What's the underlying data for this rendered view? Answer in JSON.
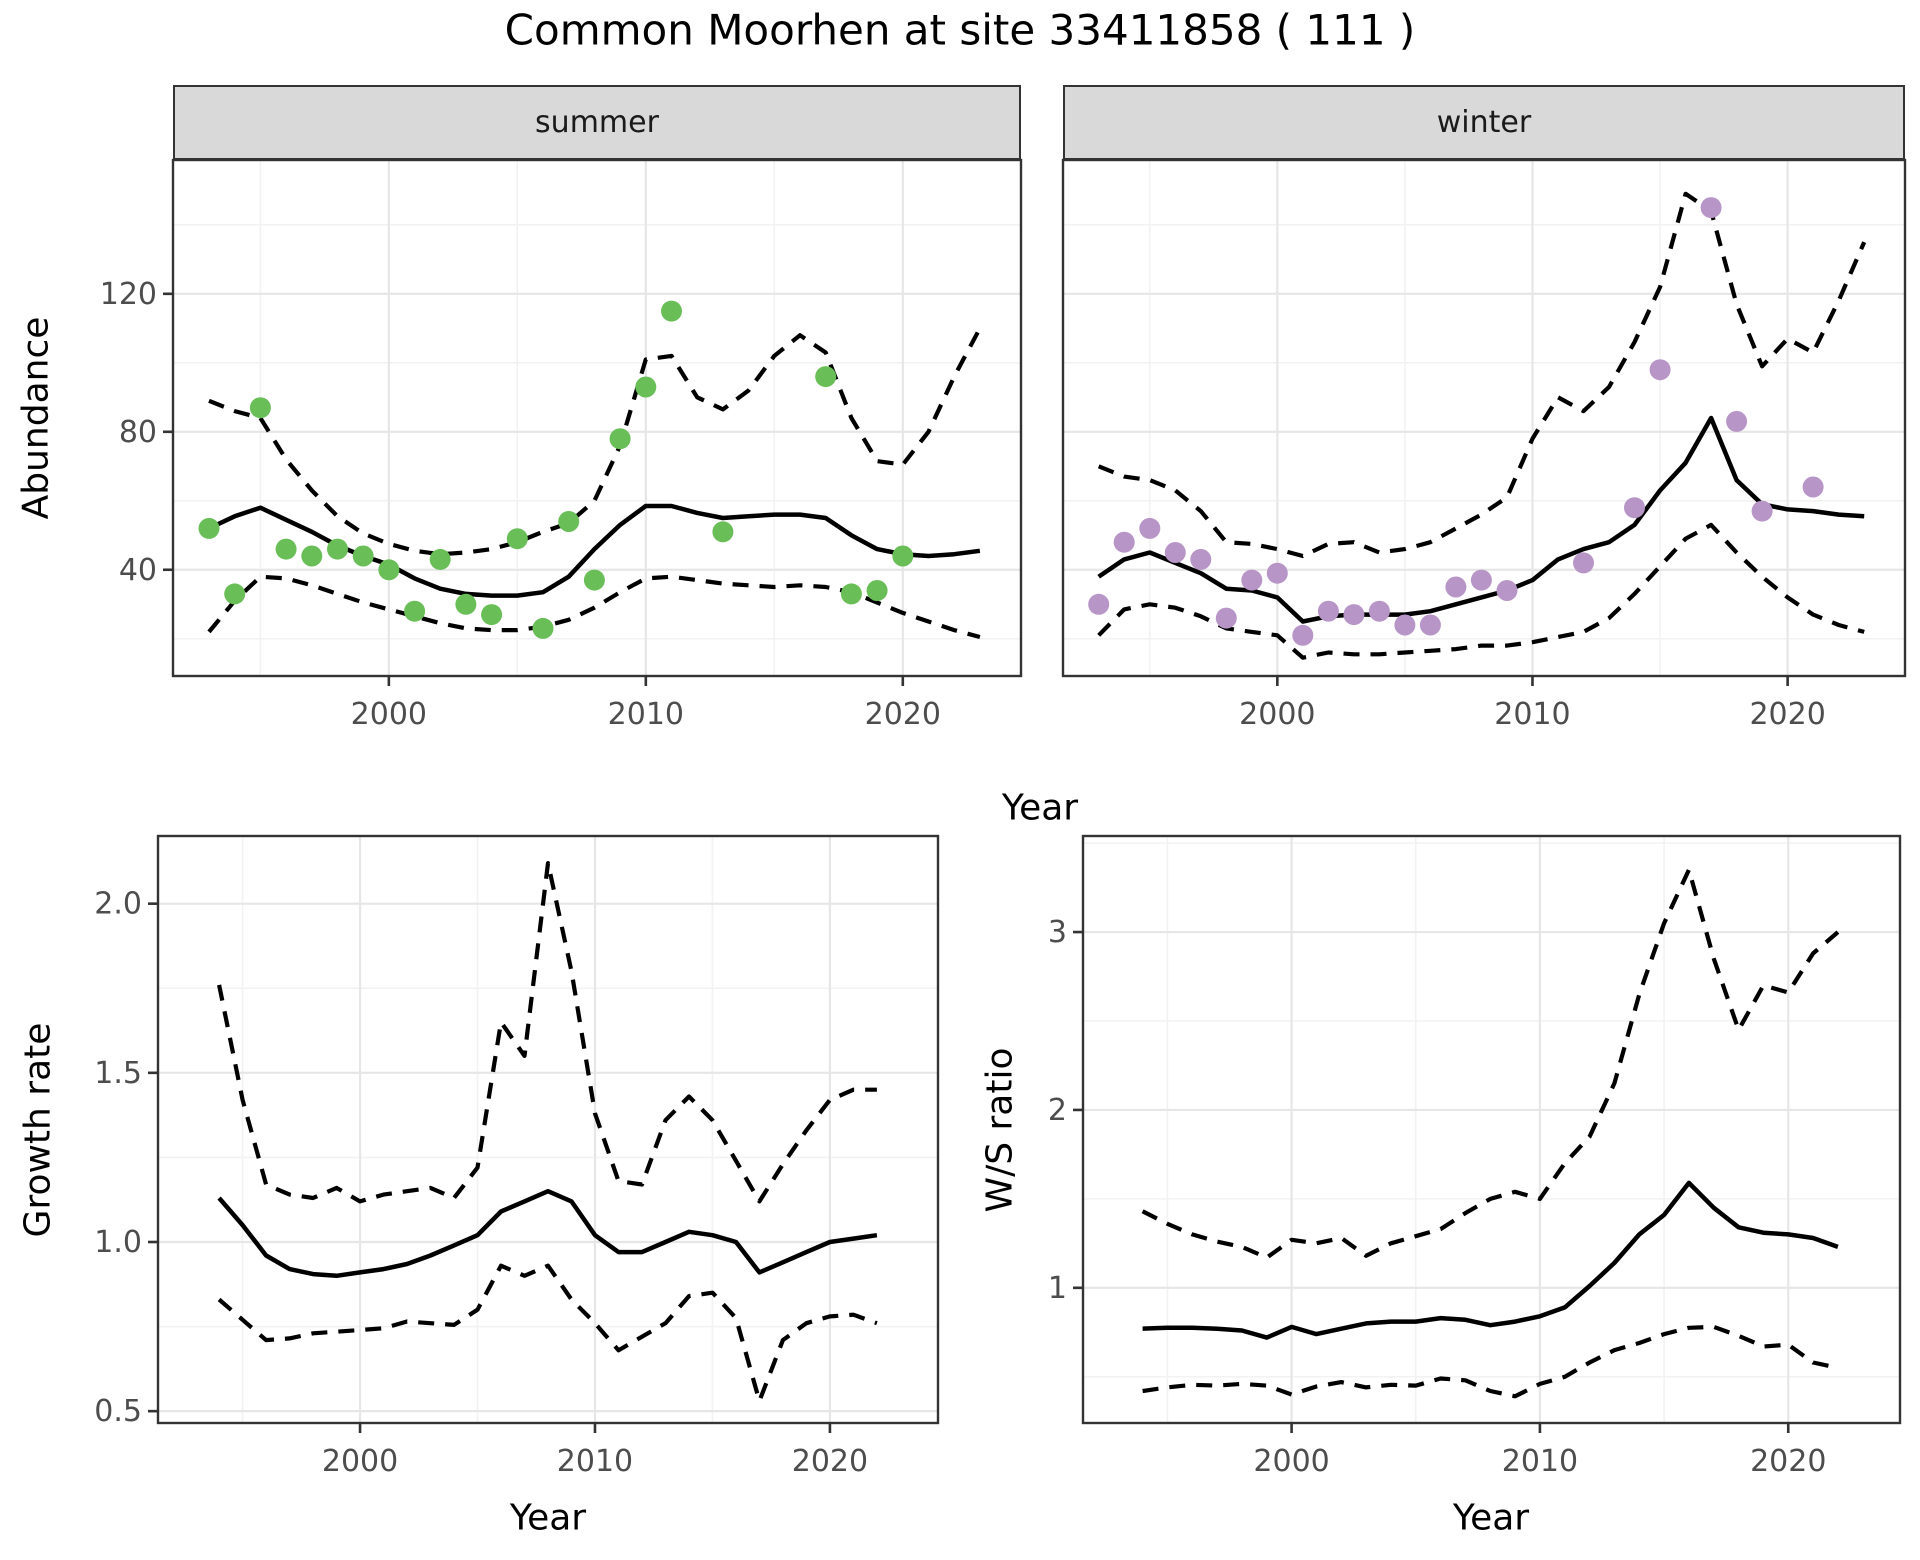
{
  "title": "Common Moorhen at site 33411858 ( 111 )",
  "facets": {
    "summer": "summer",
    "winter": "winter"
  },
  "axis": {
    "x_label_top": "Year",
    "x_label_growth": "Year",
    "x_label_ws": "Year",
    "y_label_abundance": "Abundance",
    "y_label_growth": "Growth rate",
    "y_label_ws": "W/S ratio"
  },
  "colors": {
    "summer_point": "#69be58",
    "winter_point": "#b795c7",
    "fit_line": "#000000",
    "ci_line": "#000000",
    "strip_bg": "#d9d9d9",
    "panel_border": "#333333",
    "grid_major": "#e6e6e6",
    "grid_minor": "#f2f2f2",
    "tick_mark": "#333333",
    "tick_text": "#4d4d4d"
  },
  "chart_data": [
    {
      "id": "abundance-summer",
      "type": "line",
      "facet_label": "summer",
      "xlabel": "Year",
      "ylabel": "Abundance",
      "x_domain": [
        1991.6,
        2024.6
      ],
      "y_domain": [
        9.2,
        158.8
      ],
      "x_ticks": [
        {
          "v": 2000,
          "l": "2000"
        },
        {
          "v": 2010,
          "l": "2010"
        },
        {
          "v": 2020,
          "l": "2020"
        }
      ],
      "x_minor": [
        1995,
        2005,
        2015
      ],
      "y_ticks": [
        {
          "v": 40,
          "l": "40"
        },
        {
          "v": 80,
          "l": "80"
        },
        {
          "v": 120,
          "l": "120"
        }
      ],
      "y_minor": [
        20,
        60,
        100,
        140
      ],
      "y_tick_labels": true,
      "point_color": "#69be58",
      "line_x_start": 1993,
      "series": {
        "fit": [
          52,
          55.5,
          58,
          54.5,
          51,
          47,
          44,
          41.5,
          37.5,
          34.5,
          33,
          32.5,
          32.5,
          33.5,
          38,
          46,
          53,
          58.5,
          58.5,
          56.5,
          55,
          55.5,
          56,
          56,
          55,
          50,
          46,
          44.5,
          44,
          44.5,
          45.5
        ],
        "upper": [
          89,
          86,
          84,
          72,
          63,
          55.5,
          50.5,
          47.5,
          45.5,
          44.5,
          45,
          46,
          48,
          51,
          53.5,
          60,
          76,
          101,
          102,
          90,
          86.5,
          92,
          102,
          108,
          103,
          84,
          71.5,
          70.5,
          80,
          96,
          110
        ],
        "lower": [
          22,
          31,
          38,
          37.5,
          35.5,
          33,
          30.5,
          28.5,
          26.5,
          24.5,
          23,
          22.5,
          22.5,
          23.5,
          25.5,
          29,
          33.5,
          37.5,
          38,
          37,
          36,
          35.5,
          35,
          35.5,
          35,
          33.5,
          30.5,
          27.5,
          25,
          22.5,
          20.5
        ],
        "points_x": [
          1993,
          1994,
          1995,
          1996,
          1997,
          1998,
          1999,
          2000,
          2001,
          2002,
          2003,
          2004,
          2005,
          2006,
          2007,
          2008,
          2009,
          2010,
          2011,
          2013,
          2017,
          2018,
          2019,
          2020
        ],
        "points_y": [
          52,
          33,
          87,
          46,
          44,
          46,
          44,
          40,
          28,
          43,
          30,
          27,
          49,
          23,
          54,
          37,
          78,
          93,
          115,
          51,
          96,
          33,
          34,
          44
        ]
      }
    },
    {
      "id": "abundance-winter",
      "type": "line",
      "facet_label": "winter",
      "xlabel": "Year",
      "ylabel": "Abundance",
      "x_domain": [
        1991.6,
        2024.6
      ],
      "y_domain": [
        9.2,
        158.8
      ],
      "x_ticks": [
        {
          "v": 2000,
          "l": "2000"
        },
        {
          "v": 2010,
          "l": "2010"
        },
        {
          "v": 2020,
          "l": "2020"
        }
      ],
      "x_minor": [
        1995,
        2005,
        2015
      ],
      "y_ticks": [
        {
          "v": 40,
          "l": "40"
        },
        {
          "v": 80,
          "l": "80"
        },
        {
          "v": 120,
          "l": "120"
        }
      ],
      "y_minor": [
        20,
        60,
        100,
        140
      ],
      "y_tick_labels": false,
      "point_color": "#b795c7",
      "line_x_start": 1993,
      "series": {
        "fit": [
          38,
          43,
          45,
          42,
          39,
          34.5,
          34,
          32,
          25,
          26.5,
          27,
          27,
          27,
          28,
          30,
          32,
          34,
          37,
          43,
          46,
          48,
          53,
          63,
          71,
          84,
          66,
          59,
          57.5,
          57,
          56,
          55.5
        ],
        "upper": [
          70,
          67,
          66,
          63,
          57,
          48,
          47.5,
          46,
          44,
          47.5,
          48,
          45,
          46,
          48,
          52,
          56,
          61,
          78,
          90,
          86,
          93,
          106,
          122,
          149,
          144,
          117,
          99,
          107,
          103,
          118,
          135
        ],
        "lower": [
          21,
          28.5,
          30,
          29,
          26.5,
          23,
          22,
          21,
          14.5,
          16,
          15.5,
          15.5,
          16,
          16.5,
          17,
          18,
          18,
          19,
          20.5,
          22,
          26,
          33,
          41,
          49,
          53,
          45,
          38,
          32,
          27,
          24,
          22
        ],
        "points_x": [
          1993,
          1994,
          1995,
          1996,
          1997,
          1998,
          1999,
          2000,
          2001,
          2002,
          2003,
          2004,
          2005,
          2006,
          2007,
          2008,
          2009,
          2012,
          2014,
          2015,
          2017,
          2018,
          2019,
          2021
        ],
        "points_y": [
          30,
          48,
          52,
          45,
          43,
          26,
          37,
          39,
          21,
          28,
          27,
          28,
          24,
          24,
          35,
          37,
          34,
          42,
          58,
          98,
          145,
          83,
          57,
          64
        ]
      }
    },
    {
      "id": "growth-rate",
      "type": "line",
      "facet_label": "",
      "xlabel": "Year",
      "ylabel": "Growth rate",
      "x_domain": [
        1991.4,
        2024.6
      ],
      "y_domain": [
        0.465,
        2.2
      ],
      "x_ticks": [
        {
          "v": 2000,
          "l": "2000"
        },
        {
          "v": 2010,
          "l": "2010"
        },
        {
          "v": 2020,
          "l": "2020"
        }
      ],
      "x_minor": [
        1995,
        2005,
        2015
      ],
      "y_ticks": [
        {
          "v": 0.5,
          "l": "0.5"
        },
        {
          "v": 1.0,
          "l": "1.0"
        },
        {
          "v": 1.5,
          "l": "1.5"
        },
        {
          "v": 2.0,
          "l": "2.0"
        }
      ],
      "y_minor": [
        0.75,
        1.25,
        1.75
      ],
      "y_tick_labels": true,
      "point_color": null,
      "line_x_start": 1994,
      "series": {
        "fit": [
          1.13,
          1.05,
          0.96,
          0.92,
          0.905,
          0.9,
          0.91,
          0.92,
          0.935,
          0.96,
          0.99,
          1.02,
          1.09,
          1.12,
          1.15,
          1.12,
          1.02,
          0.97,
          0.97,
          1.0,
          1.03,
          1.02,
          1.0,
          0.91,
          0.94,
          0.97,
          1.0,
          1.01,
          1.02
        ],
        "upper": [
          1.76,
          1.42,
          1.17,
          1.14,
          1.13,
          1.16,
          1.12,
          1.14,
          1.15,
          1.16,
          1.13,
          1.22,
          1.65,
          1.55,
          2.12,
          1.8,
          1.38,
          1.18,
          1.17,
          1.36,
          1.43,
          1.36,
          1.24,
          1.12,
          1.23,
          1.33,
          1.42,
          1.45,
          1.45
        ],
        "lower": [
          0.83,
          0.77,
          0.71,
          0.715,
          0.73,
          0.735,
          0.74,
          0.745,
          0.765,
          0.76,
          0.755,
          0.8,
          0.93,
          0.9,
          0.93,
          0.83,
          0.76,
          0.68,
          0.72,
          0.76,
          0.84,
          0.85,
          0.775,
          0.53,
          0.71,
          0.76,
          0.78,
          0.785,
          0.76
        ],
        "points_x": [],
        "points_y": []
      }
    },
    {
      "id": "ws-ratio",
      "type": "line",
      "facet_label": "",
      "xlabel": "Year",
      "ylabel": "W/S ratio",
      "x_domain": [
        1991.6,
        2024.5
      ],
      "y_domain": [
        0.24,
        3.54
      ],
      "x_ticks": [
        {
          "v": 2000,
          "l": "2000"
        },
        {
          "v": 2010,
          "l": "2010"
        },
        {
          "v": 2020,
          "l": "2020"
        }
      ],
      "x_minor": [
        1995,
        2005,
        2015
      ],
      "y_ticks": [
        {
          "v": 1,
          "l": "1"
        },
        {
          "v": 2,
          "l": "2"
        },
        {
          "v": 3,
          "l": "3"
        }
      ],
      "y_minor": [
        0.5,
        1.5,
        2.5,
        3.5
      ],
      "y_tick_labels": true,
      "point_color": null,
      "line_x_start": 1994,
      "series": {
        "fit": [
          0.77,
          0.775,
          0.775,
          0.77,
          0.76,
          0.72,
          0.78,
          0.74,
          0.77,
          0.8,
          0.81,
          0.81,
          0.83,
          0.82,
          0.79,
          0.81,
          0.84,
          0.89,
          1.01,
          1.14,
          1.3,
          1.41,
          1.59,
          1.45,
          1.34,
          1.31,
          1.3,
          1.28,
          1.23
        ],
        "upper": [
          1.43,
          1.36,
          1.3,
          1.26,
          1.23,
          1.17,
          1.27,
          1.25,
          1.28,
          1.18,
          1.25,
          1.29,
          1.33,
          1.42,
          1.5,
          1.54,
          1.5,
          1.7,
          1.85,
          2.15,
          2.65,
          3.05,
          3.35,
          2.85,
          2.45,
          2.7,
          2.66,
          2.88,
          3.0
        ],
        "lower": [
          0.42,
          0.44,
          0.455,
          0.45,
          0.46,
          0.45,
          0.4,
          0.445,
          0.47,
          0.44,
          0.455,
          0.45,
          0.49,
          0.48,
          0.42,
          0.39,
          0.46,
          0.5,
          0.58,
          0.65,
          0.69,
          0.74,
          0.775,
          0.78,
          0.73,
          0.67,
          0.68,
          0.58,
          0.55
        ],
        "points_x": [],
        "points_y": []
      }
    }
  ]
}
